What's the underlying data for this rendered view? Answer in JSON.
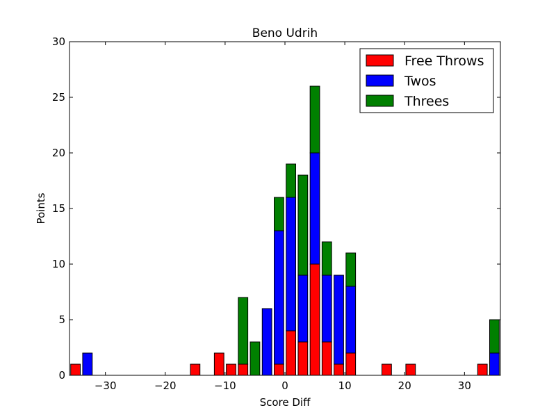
{
  "chart_data": {
    "type": "bar",
    "stacked": true,
    "title": "Beno Udrih",
    "xlabel": "Score Diff",
    "ylabel": "Points",
    "xlim": [
      -36,
      36
    ],
    "ylim": [
      0,
      30
    ],
    "x_ticks": [
      -30,
      -20,
      -10,
      0,
      10,
      20,
      30
    ],
    "x_tick_labels": [
      "−30",
      "−20",
      "−10",
      "0",
      "10",
      "20",
      "30"
    ],
    "y_ticks": [
      0,
      5,
      10,
      15,
      20,
      25,
      30
    ],
    "y_tick_labels": [
      "0",
      "5",
      "10",
      "15",
      "20",
      "25",
      "30"
    ],
    "bar_width": 1.6,
    "grid": false,
    "legend_position": "top-right",
    "x": [
      -35,
      -33,
      -15,
      -11,
      -9,
      -7,
      -5,
      -3,
      -1,
      1,
      3,
      5,
      7,
      9,
      11,
      17,
      21,
      33,
      35
    ],
    "series": [
      {
        "name": "Free Throws",
        "color": "#ff0000",
        "values": [
          1,
          0,
          1,
          2,
          1,
          1,
          0,
          0,
          1,
          4,
          3,
          10,
          3,
          1,
          2,
          1,
          1,
          1,
          0
        ]
      },
      {
        "name": "Twos",
        "color": "#0000ff",
        "values": [
          0,
          2,
          0,
          0,
          0,
          0,
          0,
          6,
          12,
          12,
          6,
          10,
          6,
          8,
          6,
          0,
          0,
          0,
          2
        ]
      },
      {
        "name": "Threes",
        "color": "#008000",
        "values": [
          0,
          0,
          0,
          0,
          0,
          6,
          3,
          0,
          3,
          3,
          9,
          6,
          3,
          0,
          3,
          0,
          0,
          0,
          3
        ]
      }
    ]
  }
}
